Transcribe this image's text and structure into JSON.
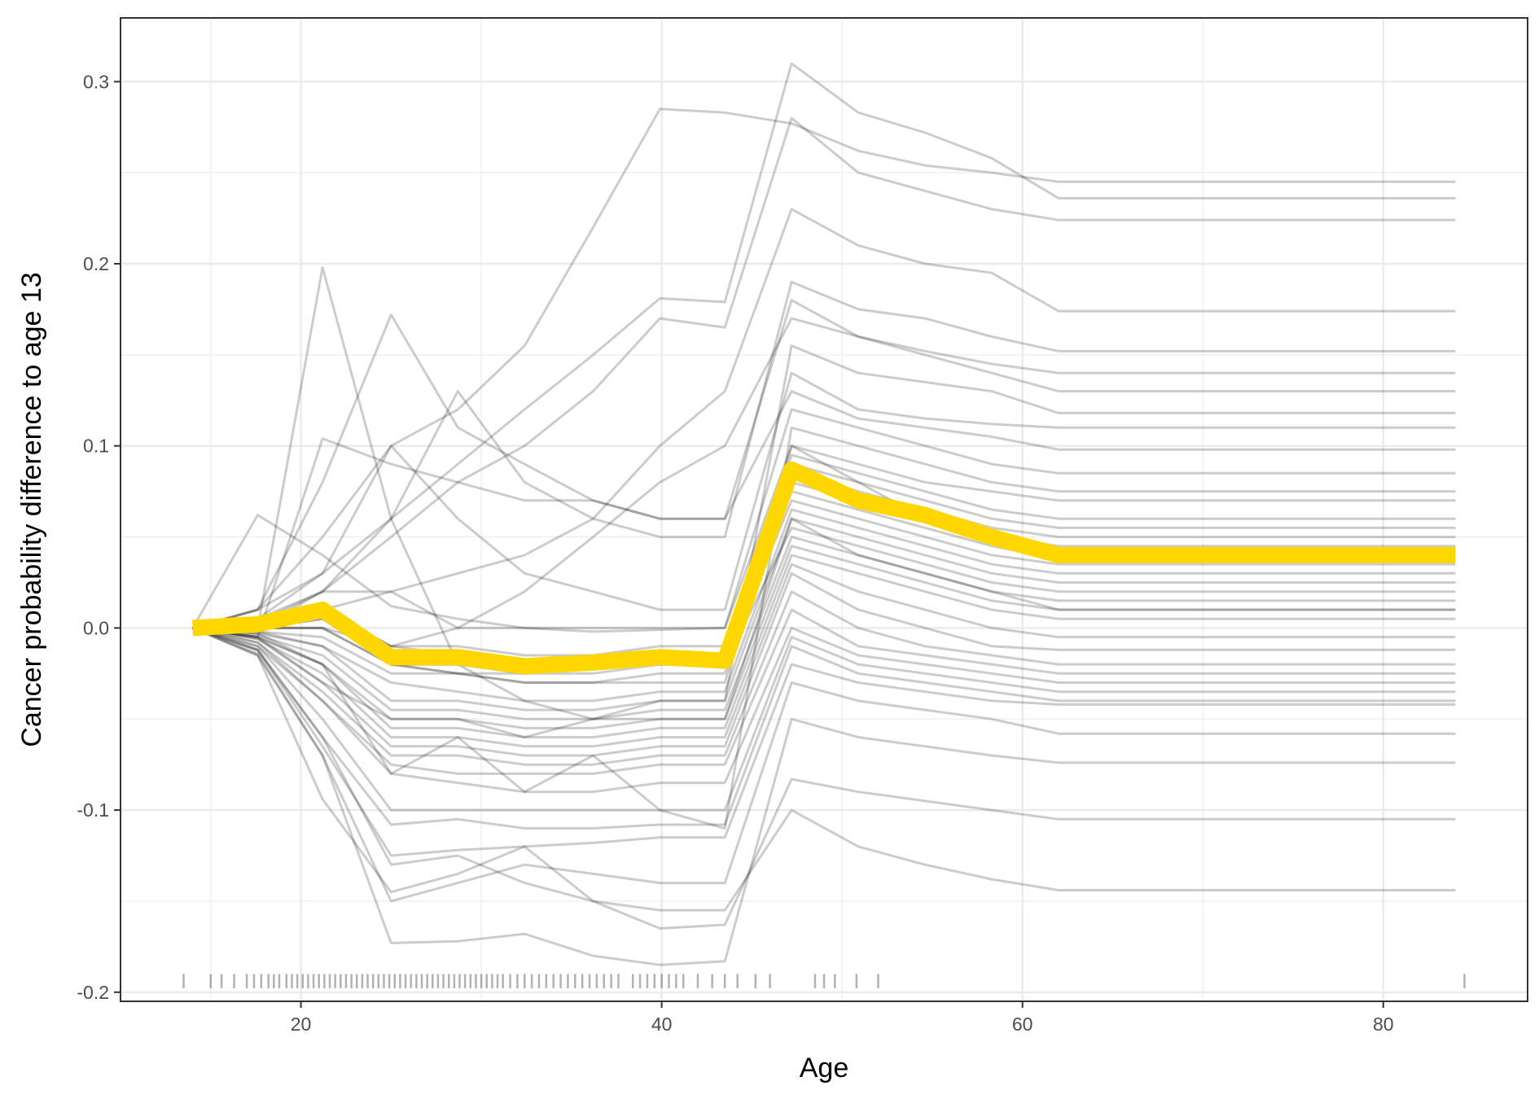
{
  "chart_data": {
    "type": "line",
    "title": "",
    "xlabel": "Age",
    "ylabel": "Cancer probability difference to age 13",
    "xlim": [
      10,
      88
    ],
    "ylim": [
      -0.205,
      0.335
    ],
    "x_ticks": [
      20,
      40,
      60,
      80
    ],
    "x_tick_labels": [
      "20",
      "40",
      "60",
      "80"
    ],
    "y_ticks": [
      -0.2,
      -0.1,
      0.0,
      0.1,
      0.2,
      0.3
    ],
    "y_tick_labels": [
      "-0.2",
      "-0.1",
      "0.0",
      "0.1",
      "0.2",
      "0.3"
    ],
    "grid": true,
    "legend": "none",
    "x": [
      14,
      17.6,
      21.2,
      25,
      28.7,
      32.4,
      36.2,
      39.9,
      43.5,
      47.2,
      50.9,
      54.6,
      58.3,
      62,
      84
    ],
    "series": [
      {
        "role": "pdp-average",
        "color": "#FFD700",
        "values": [
          0.0,
          0.002,
          0.01,
          -0.016,
          -0.016,
          -0.021,
          -0.019,
          -0.016,
          -0.018,
          0.087,
          0.07,
          0.062,
          0.05,
          0.04,
          0.04
        ]
      },
      {
        "role": "ice",
        "values": [
          0,
          0.062,
          0.04,
          0.012,
          0.005,
          0.0,
          -0.002,
          -0.001,
          0.0,
          0.1,
          0.08,
          0.06,
          0.05,
          0.042,
          0.042
        ]
      },
      {
        "role": "ice",
        "values": [
          0,
          0.0,
          0.198,
          0.06,
          -0.02,
          -0.04,
          -0.05,
          -0.05,
          -0.05,
          0.06,
          0.04,
          0.03,
          0.02,
          0.01,
          0.01
        ]
      },
      {
        "role": "ice",
        "values": [
          0,
          0.01,
          0.08,
          0.172,
          0.11,
          0.09,
          0.07,
          0.06,
          0.06,
          0.18,
          0.16,
          0.15,
          0.14,
          0.13,
          0.13
        ]
      },
      {
        "role": "ice",
        "values": [
          0,
          0.01,
          0.05,
          0.1,
          0.12,
          0.155,
          0.22,
          0.285,
          0.283,
          0.277,
          0.262,
          0.254,
          0.25,
          0.245,
          0.245
        ]
      },
      {
        "role": "ice",
        "values": [
          0,
          0.01,
          0.03,
          0.06,
          0.09,
          0.12,
          0.15,
          0.181,
          0.179,
          0.31,
          0.283,
          0.272,
          0.258,
          0.236,
          0.236
        ]
      },
      {
        "role": "ice",
        "values": [
          0,
          0.005,
          0.02,
          0.05,
          0.08,
          0.1,
          0.13,
          0.17,
          0.165,
          0.28,
          0.25,
          0.24,
          0.23,
          0.224,
          0.224
        ]
      },
      {
        "role": "ice",
        "values": [
          0,
          0.0,
          0.01,
          0.02,
          0.03,
          0.04,
          0.06,
          0.1,
          0.13,
          0.23,
          0.21,
          0.2,
          0.195,
          0.174,
          0.174
        ]
      },
      {
        "role": "ice",
        "values": [
          0,
          0.0,
          0.02,
          0.06,
          0.13,
          0.08,
          0.06,
          0.05,
          0.05,
          0.19,
          0.175,
          0.17,
          0.16,
          0.152,
          0.152
        ]
      },
      {
        "role": "ice",
        "values": [
          0,
          -0.005,
          -0.03,
          -0.05,
          -0.05,
          -0.06,
          -0.05,
          -0.04,
          -0.04,
          0.155,
          0.14,
          0.135,
          0.13,
          0.118,
          0.118
        ]
      },
      {
        "role": "ice",
        "values": [
          0,
          -0.005,
          0.104,
          0.09,
          0.08,
          0.07,
          0.07,
          0.06,
          0.06,
          0.13,
          0.115,
          0.11,
          0.105,
          0.098,
          0.098
        ]
      },
      {
        "role": "ice",
        "values": [
          0,
          0.0,
          0.0,
          -0.01,
          0.0,
          0.0,
          0.0,
          0.0,
          0.0,
          0.12,
          0.11,
          0.1,
          0.09,
          0.085,
          0.085
        ]
      },
      {
        "role": "ice",
        "values": [
          0,
          0.002,
          0.01,
          -0.02,
          -0.025,
          -0.03,
          -0.03,
          -0.03,
          -0.03,
          0.1,
          0.09,
          0.08,
          0.075,
          0.07,
          0.07
        ]
      },
      {
        "role": "ice",
        "values": [
          0,
          0.0,
          0.01,
          -0.01,
          -0.01,
          -0.015,
          -0.015,
          -0.01,
          -0.01,
          0.095,
          0.085,
          0.075,
          0.065,
          0.06,
          0.06
        ]
      },
      {
        "role": "ice",
        "values": [
          0,
          0.0,
          0.005,
          -0.02,
          -0.02,
          -0.025,
          -0.02,
          -0.02,
          -0.02,
          0.09,
          0.08,
          0.07,
          0.06,
          0.055,
          0.055
        ]
      },
      {
        "role": "ice",
        "values": [
          0,
          0.001,
          0.01,
          -0.01,
          -0.015,
          -0.02,
          -0.02,
          -0.015,
          -0.015,
          0.085,
          0.075,
          0.065,
          0.055,
          0.05,
          0.05
        ]
      },
      {
        "role": "ice",
        "values": [
          0,
          0.0,
          0.0,
          -0.02,
          -0.02,
          -0.02,
          -0.02,
          -0.02,
          -0.02,
          0.08,
          0.07,
          0.06,
          0.05,
          0.045,
          0.045
        ]
      },
      {
        "role": "ice",
        "values": [
          0,
          -0.002,
          -0.005,
          -0.025,
          -0.025,
          -0.03,
          -0.03,
          -0.025,
          -0.025,
          0.075,
          0.065,
          0.055,
          0.045,
          0.038,
          0.038
        ]
      },
      {
        "role": "ice",
        "values": [
          0,
          0.0,
          0.005,
          -0.015,
          -0.02,
          -0.02,
          -0.02,
          -0.018,
          -0.018,
          0.07,
          0.06,
          0.05,
          0.04,
          0.035,
          0.035
        ]
      },
      {
        "role": "ice",
        "values": [
          0,
          -0.003,
          -0.01,
          -0.03,
          -0.035,
          -0.04,
          -0.04,
          -0.035,
          -0.035,
          0.065,
          0.055,
          0.045,
          0.035,
          0.03,
          0.03
        ]
      },
      {
        "role": "ice",
        "values": [
          0,
          -0.002,
          -0.01,
          -0.04,
          -0.04,
          -0.045,
          -0.045,
          -0.04,
          -0.04,
          0.06,
          0.05,
          0.04,
          0.03,
          0.025,
          0.025
        ]
      },
      {
        "role": "ice",
        "values": [
          0,
          0.0,
          0.0,
          -0.02,
          -0.025,
          -0.025,
          -0.025,
          -0.02,
          -0.02,
          0.055,
          0.045,
          0.035,
          0.025,
          0.02,
          0.02
        ]
      },
      {
        "role": "ice",
        "values": [
          0,
          -0.004,
          -0.015,
          -0.045,
          -0.045,
          -0.05,
          -0.05,
          -0.045,
          -0.045,
          0.05,
          0.04,
          0.03,
          0.02,
          0.015,
          0.015
        ]
      },
      {
        "role": "ice",
        "values": [
          0,
          -0.005,
          -0.02,
          -0.05,
          -0.05,
          -0.055,
          -0.055,
          -0.05,
          -0.05,
          0.045,
          0.035,
          0.025,
          0.015,
          0.01,
          0.01
        ]
      },
      {
        "role": "ice",
        "values": [
          0,
          -0.005,
          -0.02,
          -0.055,
          -0.055,
          -0.06,
          -0.06,
          -0.055,
          -0.055,
          0.04,
          0.03,
          0.02,
          0.01,
          0.005,
          0.005
        ]
      },
      {
        "role": "ice",
        "values": [
          0,
          -0.006,
          -0.025,
          -0.06,
          -0.06,
          -0.065,
          -0.065,
          -0.06,
          -0.06,
          0.035,
          0.02,
          0.01,
          0.0,
          -0.005,
          -0.005
        ]
      },
      {
        "role": "ice",
        "values": [
          0,
          -0.006,
          -0.03,
          -0.065,
          -0.065,
          -0.07,
          -0.07,
          -0.065,
          -0.065,
          0.03,
          0.01,
          0.0,
          -0.01,
          -0.012,
          -0.012
        ]
      },
      {
        "role": "ice",
        "values": [
          0,
          -0.008,
          -0.035,
          -0.07,
          -0.07,
          -0.075,
          -0.075,
          -0.07,
          -0.07,
          0.02,
          0.0,
          -0.01,
          -0.015,
          -0.02,
          -0.02
        ]
      },
      {
        "role": "ice",
        "values": [
          0,
          -0.008,
          -0.04,
          -0.075,
          -0.08,
          -0.08,
          -0.08,
          -0.075,
          -0.075,
          0.01,
          -0.01,
          -0.015,
          -0.02,
          -0.025,
          -0.025
        ]
      },
      {
        "role": "ice",
        "values": [
          0,
          -0.01,
          -0.04,
          -0.08,
          -0.085,
          -0.09,
          -0.09,
          -0.085,
          -0.085,
          0.0,
          -0.015,
          -0.02,
          -0.025,
          -0.03,
          -0.03
        ]
      },
      {
        "role": "ice",
        "values": [
          0,
          -0.01,
          -0.05,
          -0.1,
          -0.1,
          -0.1,
          -0.1,
          -0.1,
          -0.1,
          -0.005,
          -0.02,
          -0.025,
          -0.03,
          -0.035,
          -0.035
        ]
      },
      {
        "role": "ice",
        "values": [
          0,
          -0.012,
          -0.06,
          -0.108,
          -0.105,
          -0.11,
          -0.11,
          -0.108,
          -0.108,
          -0.01,
          -0.025,
          -0.03,
          -0.035,
          -0.04,
          -0.04
        ]
      },
      {
        "role": "ice",
        "values": [
          0,
          -0.012,
          -0.065,
          -0.125,
          -0.122,
          -0.12,
          -0.118,
          -0.115,
          -0.115,
          -0.02,
          -0.03,
          -0.035,
          -0.04,
          -0.042,
          -0.042
        ]
      },
      {
        "role": "ice",
        "values": [
          0,
          -0.014,
          -0.07,
          -0.15,
          -0.14,
          -0.13,
          -0.135,
          -0.14,
          -0.14,
          -0.03,
          -0.04,
          -0.045,
          -0.05,
          -0.058,
          -0.058
        ]
      },
      {
        "role": "ice",
        "values": [
          0,
          -0.015,
          -0.07,
          -0.173,
          -0.172,
          -0.168,
          -0.18,
          -0.185,
          -0.183,
          -0.05,
          -0.06,
          -0.065,
          -0.07,
          -0.074,
          -0.074
        ]
      },
      {
        "role": "ice",
        "values": [
          0,
          -0.015,
          -0.094,
          -0.145,
          -0.135,
          -0.12,
          -0.15,
          -0.165,
          -0.163,
          -0.083,
          -0.09,
          -0.095,
          -0.1,
          -0.105,
          -0.105
        ]
      },
      {
        "role": "ice",
        "values": [
          0,
          -0.012,
          -0.06,
          -0.13,
          -0.125,
          -0.14,
          -0.15,
          -0.155,
          -0.155,
          -0.1,
          -0.12,
          -0.13,
          -0.138,
          -0.144,
          -0.144
        ]
      },
      {
        "role": "ice",
        "values": [
          0,
          0.005,
          0.03,
          0.1,
          0.06,
          0.03,
          0.02,
          0.01,
          0.01,
          0.14,
          0.12,
          0.115,
          0.112,
          0.11,
          0.11
        ]
      },
      {
        "role": "ice",
        "values": [
          0,
          0.003,
          0.02,
          0.02,
          0.0,
          0.02,
          0.05,
          0.08,
          0.1,
          0.17,
          0.16,
          0.152,
          0.145,
          0.14,
          0.14
        ]
      },
      {
        "role": "ice",
        "values": [
          0,
          -0.003,
          -0.02,
          -0.08,
          -0.06,
          -0.09,
          -0.07,
          -0.1,
          -0.11,
          0.11,
          0.1,
          0.09,
          0.08,
          0.075,
          0.075
        ]
      }
    ],
    "rug_x": [
      13.5,
      15,
      15.6,
      16.3,
      17,
      17.4,
      17.8,
      18.2,
      18.5,
      18.8,
      19.2,
      19.5,
      19.8,
      20.1,
      20.4,
      20.7,
      21,
      21.3,
      21.6,
      21.9,
      22.2,
      22.5,
      22.8,
      23.1,
      23.4,
      23.7,
      24,
      24.3,
      24.6,
      24.9,
      25.2,
      25.5,
      25.8,
      26.1,
      26.4,
      26.7,
      27,
      27.3,
      27.6,
      27.9,
      28.2,
      28.5,
      28.8,
      29.1,
      29.4,
      29.7,
      30,
      30.3,
      30.6,
      30.9,
      31.2,
      31.6,
      32,
      32.4,
      32.8,
      33.2,
      33.6,
      34,
      34.4,
      34.8,
      35.2,
      35.6,
      36,
      36.4,
      36.8,
      37.2,
      37.6,
      38.4,
      38.8,
      39.2,
      39.6,
      40,
      40.4,
      40.8,
      41.2,
      42,
      42.8,
      43.5,
      44.2,
      45.2,
      46,
      48.5,
      49,
      49.6,
      50.8,
      52,
      84.5
    ]
  }
}
